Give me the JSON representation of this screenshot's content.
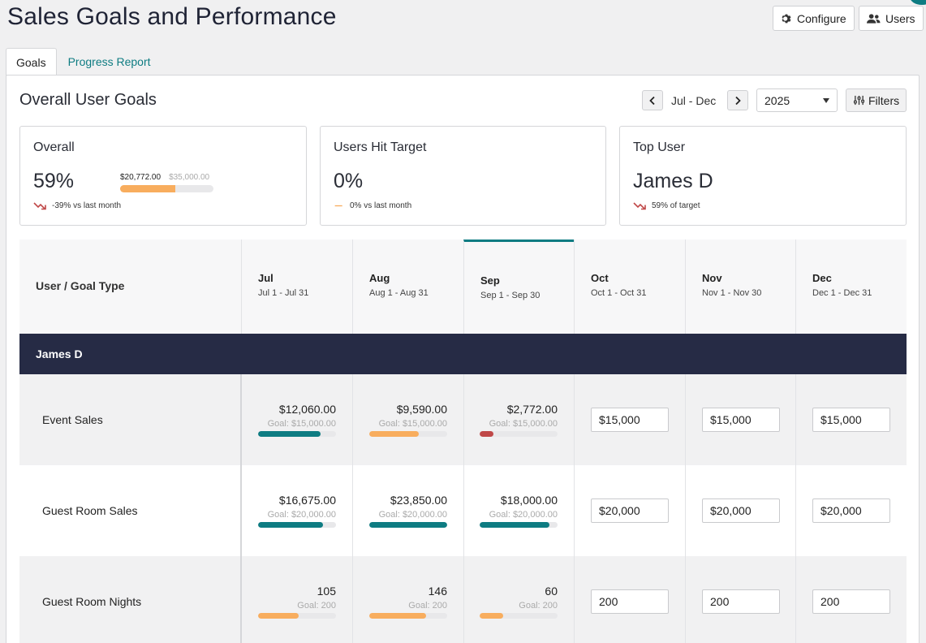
{
  "title": "Sales Goals and Performance",
  "top_buttons": {
    "configure": "Configure",
    "users": "Users"
  },
  "tabs": [
    {
      "label": "Goals",
      "active": true
    },
    {
      "label": "Progress Report",
      "active": false
    }
  ],
  "section_title": "Overall User Goals",
  "range": {
    "label": "Jul - Dec",
    "year": "2025",
    "filters": "Filters"
  },
  "cards": {
    "overall": {
      "title": "Overall",
      "value": "59%",
      "current": "$20,772.00",
      "target": "$35,000.00",
      "progress": 0.59,
      "foot": "-39% vs last month",
      "trend": "down"
    },
    "users_hit": {
      "title": "Users Hit Target",
      "value": "0%",
      "foot": "0% vs last month",
      "trend": "flat"
    },
    "top_user": {
      "title": "Top User",
      "value": "James D",
      "foot": "59% of target",
      "trend": "down"
    }
  },
  "table": {
    "first_header": "User / Goal Type",
    "columns": [
      {
        "month": "Jul",
        "range": "Jul 1 - Jul 31",
        "current": false
      },
      {
        "month": "Aug",
        "range": "Aug 1 - Aug 31",
        "current": false
      },
      {
        "month": "Sep",
        "range": "Sep 1 - Sep 30",
        "current": true
      },
      {
        "month": "Oct",
        "range": "Oct 1 - Oct 31",
        "current": false
      },
      {
        "month": "Nov",
        "range": "Nov 1 - Nov 30",
        "current": false
      },
      {
        "month": "Dec",
        "range": "Dec 1 - Dec 31",
        "current": false
      }
    ],
    "user": "James D",
    "rows": [
      {
        "label": "Event Sales",
        "cells": [
          {
            "amount": "$12,060.00",
            "goal": "Goal: $15,000.00",
            "progress": 0.8,
            "color": "#0e7c82"
          },
          {
            "amount": "$9,590.00",
            "goal": "Goal: $15,000.00",
            "progress": 0.64,
            "color": "#f8ad5e"
          },
          {
            "amount": "$2,772.00",
            "goal": "Goal: $15,000.00",
            "progress": 0.18,
            "color": "#c04848"
          }
        ],
        "inputs": [
          "$15,000",
          "$15,000",
          "$15,000"
        ]
      },
      {
        "label": "Guest Room Sales",
        "cells": [
          {
            "amount": "$16,675.00",
            "goal": "Goal: $20,000.00",
            "progress": 0.83,
            "color": "#0e7c82"
          },
          {
            "amount": "$23,850.00",
            "goal": "Goal: $20,000.00",
            "progress": 1.0,
            "color": "#0e7c82"
          },
          {
            "amount": "$18,000.00",
            "goal": "Goal: $20,000.00",
            "progress": 0.9,
            "color": "#0e7c82"
          }
        ],
        "inputs": [
          "$20,000",
          "$20,000",
          "$20,000"
        ]
      },
      {
        "label": "Guest Room Nights",
        "cells": [
          {
            "amount": "105",
            "goal": "Goal: 200",
            "progress": 0.525,
            "color": "#f8ad5e"
          },
          {
            "amount": "146",
            "goal": "Goal: 200",
            "progress": 0.73,
            "color": "#f8ad5e"
          },
          {
            "amount": "60",
            "goal": "Goal: 200",
            "progress": 0.3,
            "color": "#f8ad5e"
          }
        ],
        "inputs": [
          "200",
          "200",
          "200"
        ]
      }
    ]
  },
  "colors": {
    "accent": "#0e7c82",
    "navy": "#262b45",
    "warning": "#f8ad5e",
    "danger": "#c04848"
  }
}
